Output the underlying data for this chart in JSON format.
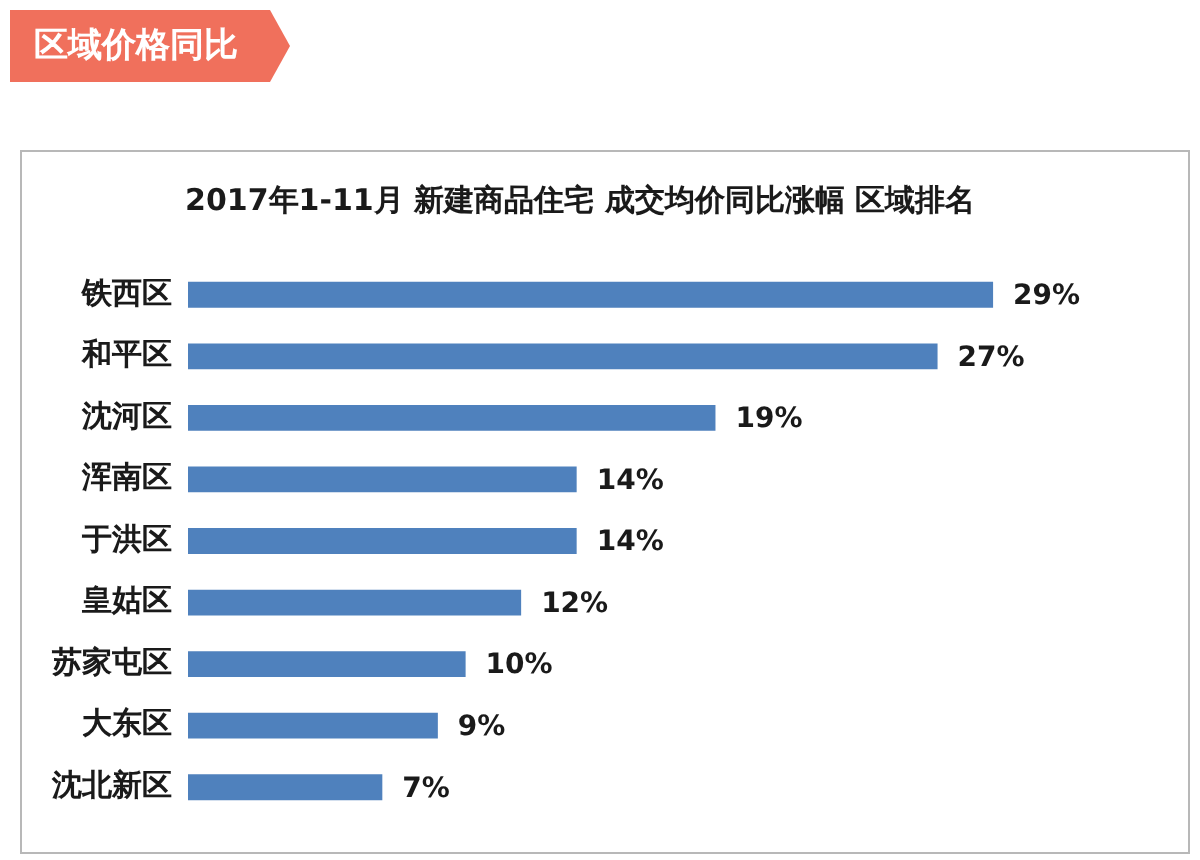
{
  "chart_data": {
    "type": "bar",
    "orientation": "horizontal",
    "title": "2017年1-11月 新建商品住宅 成交均价同比涨幅 区域排名",
    "annotations": [
      "区域价格同比"
    ],
    "categories": [
      "铁西区",
      "和平区",
      "沈河区",
      "浑南区",
      "于洪区",
      "皇姑区",
      "苏家屯区",
      "大东区",
      "沈北新区"
    ],
    "values": [
      29,
      27,
      19,
      14,
      14,
      12,
      10,
      9,
      7
    ],
    "value_labels": [
      "29%",
      "27%",
      "19%",
      "14%",
      "14%",
      "12%",
      "10%",
      "9%",
      "7%"
    ],
    "color": "#4f81bd",
    "tick_labels": "y"
  }
}
